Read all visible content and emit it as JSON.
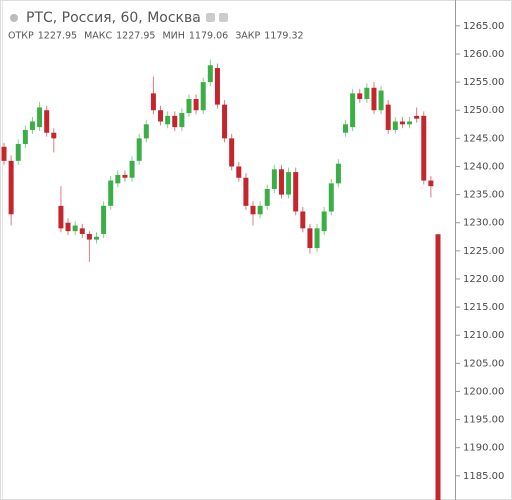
{
  "chart_data": {
    "type": "candlestick",
    "title": "РТС, Россия, 60, Москва",
    "ohlc_summary": [
      {
        "label": "ОТКР",
        "value": 1227.95
      },
      {
        "label": "МАКС",
        "value": 1227.95
      },
      {
        "label": "МИН",
        "value": 1179.06
      },
      {
        "label": "ЗАКР",
        "value": 1179.32
      }
    ],
    "up_color": "#3cae46",
    "down_color": "#c4262e",
    "ylim": [
      1180.7,
      1269.6
    ],
    "yticks": [
      {
        "value": 1185,
        "label": "1185.00"
      },
      {
        "value": 1190,
        "label": "1190.00"
      },
      {
        "value": 1195,
        "label": "1195.00"
      },
      {
        "value": 1200,
        "label": "1200.00"
      },
      {
        "value": 1205,
        "label": "1205.00"
      },
      {
        "value": 1210,
        "label": "1210.00"
      },
      {
        "value": 1215,
        "label": "1215.00"
      },
      {
        "value": 1220,
        "label": "1220.00"
      },
      {
        "value": 1225,
        "label": "1225.00"
      },
      {
        "value": 1230,
        "label": "1230.00"
      },
      {
        "value": 1235,
        "label": "1235.00"
      },
      {
        "value": 1240,
        "label": "1240.00"
      },
      {
        "value": 1245,
        "label": "1245.00"
      },
      {
        "value": 1250,
        "label": "1250.00"
      },
      {
        "value": 1255,
        "label": "1255.00"
      },
      {
        "value": 1260,
        "label": "1260.00"
      },
      {
        "value": 1265,
        "label": "1265.00"
      }
    ],
    "open": [
      1243.5,
      1241,
      1241,
      1244,
      1246.5,
      1247,
      1250,
      1246,
      1233,
      1230,
      1228.5,
      1229,
      1228,
      1227,
      1228,
      1233,
      1237,
      1238.5,
      1238,
      1241,
      1245,
      1253,
      1250,
      1247.5,
      1249,
      1247,
      1249.5,
      1252,
      1250,
      1255,
      1257.5,
      1251,
      1245,
      1240,
      1238,
      1233,
      1231.5,
      1233,
      1236,
      1239.5,
      1235,
      1239,
      1232,
      1229,
      1225.5,
      1228.5,
      1232,
      1237,
      1246,
      1247,
      1253,
      1252,
      1254,
      1250,
      1251,
      1246.5,
      1248,
      1247.5,
      1249,
      1249,
      1237.5,
      1227.95
    ],
    "high": [
      1244.2,
      1242,
      1244.8,
      1247.3,
      1248.8,
      1251.5,
      1250.8,
      1246.8,
      1236.5,
      1230.8,
      1230.3,
      1229.8,
      1228.5,
      1228.3,
      1233.8,
      1238.3,
      1239.3,
      1239.3,
      1241.8,
      1245.8,
      1248.3,
      1256,
      1250.8,
      1249.8,
      1249.8,
      1250.3,
      1252.8,
      1252.8,
      1255.8,
      1259,
      1258.3,
      1251.8,
      1245.8,
      1240.8,
      1238.8,
      1233.8,
      1233.8,
      1236.8,
      1240.3,
      1240.3,
      1239.8,
      1239.8,
      1232.8,
      1229.8,
      1229.8,
      1232.8,
      1237.8,
      1241.3,
      1248.3,
      1253.8,
      1253.8,
      1254.8,
      1255,
      1254.3,
      1251.8,
      1248.8,
      1248.8,
      1248.8,
      1250.5,
      1249.8,
      1238.3,
      1227.95
    ],
    "low": [
      1240.3,
      1229.5,
      1240.3,
      1243.3,
      1245.8,
      1246.3,
      1245.3,
      1242.5,
      1228.3,
      1227.8,
      1227.8,
      1227.3,
      1223,
      1226.3,
      1227.3,
      1232.3,
      1236.3,
      1237.3,
      1237.3,
      1240.3,
      1244.3,
      1249.3,
      1247.3,
      1246.8,
      1246.3,
      1246.3,
      1248.8,
      1249.3,
      1249.3,
      1254.3,
      1250.3,
      1244.3,
      1239.3,
      1237.3,
      1232.3,
      1229.5,
      1230.8,
      1232.3,
      1235.3,
      1234.3,
      1234.3,
      1231.3,
      1228.3,
      1224.5,
      1224.8,
      1227.8,
      1231.3,
      1236.3,
      1245.3,
      1246.3,
      1251.3,
      1251.3,
      1249.3,
      1249.3,
      1245.8,
      1245.8,
      1246.8,
      1246.8,
      1247.8,
      1236.8,
      1234.5,
      1179.06
    ],
    "close": [
      1241,
      1231.5,
      1244,
      1246.5,
      1248,
      1250.5,
      1246,
      1245,
      1229,
      1228.5,
      1229.5,
      1228,
      1227,
      1227.5,
      1233,
      1237.5,
      1238.5,
      1238,
      1241,
      1245,
      1247.5,
      1250,
      1248,
      1249,
      1247,
      1249.5,
      1252,
      1250,
      1255,
      1258,
      1251,
      1245,
      1240,
      1238,
      1233,
      1231.5,
      1233,
      1236,
      1239.5,
      1235,
      1239,
      1232,
      1229,
      1225.5,
      1229,
      1232,
      1237,
      1240.5,
      1247.5,
      1253,
      1252,
      1254,
      1250,
      1253.5,
      1246.5,
      1248,
      1247.5,
      1248,
      1248.5,
      1237.5,
      1236.5,
      1179.32
    ]
  }
}
